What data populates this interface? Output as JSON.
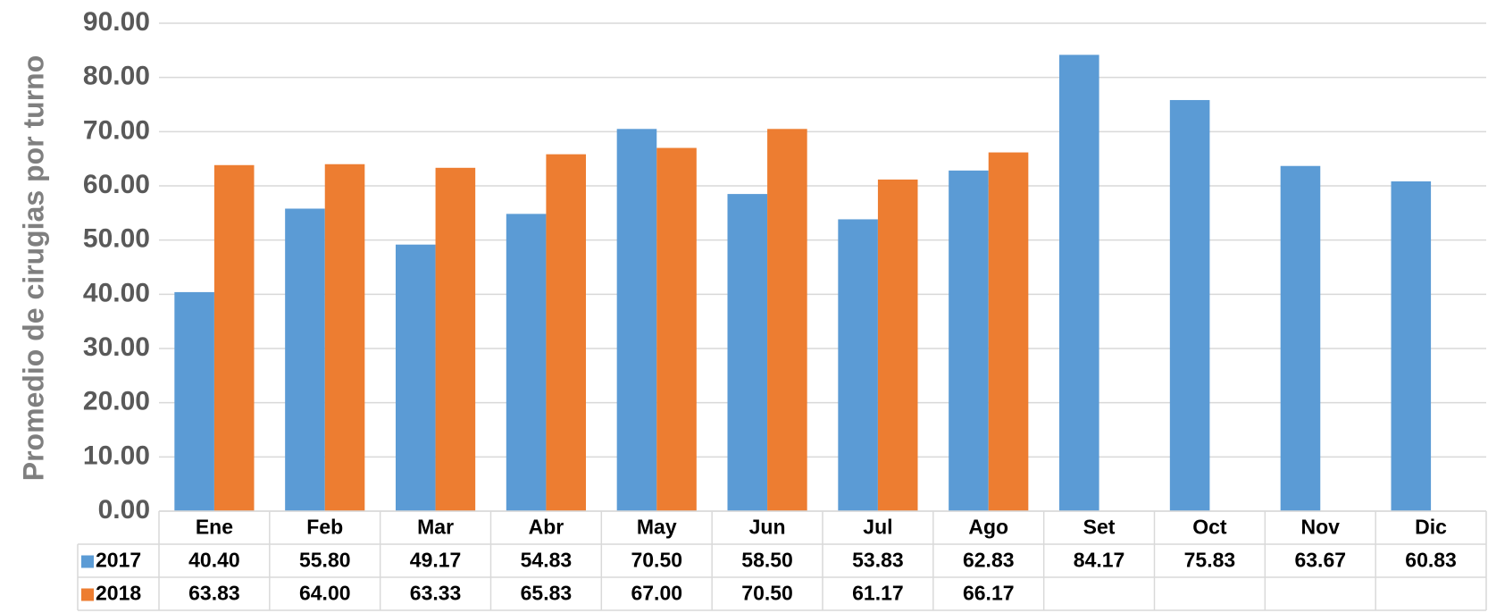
{
  "chart_data": {
    "type": "bar",
    "y_label": "Promedio de cirugias por  turno",
    "categories": [
      "Ene",
      "Feb",
      "Mar",
      "Abr",
      "May",
      "Jun",
      "Jul",
      "Ago",
      "Set",
      "Oct",
      "Nov",
      "Dic"
    ],
    "series": [
      {
        "name": "2017",
        "color": "#5b9bd5",
        "values": [
          40.4,
          55.8,
          49.17,
          54.83,
          70.5,
          58.5,
          53.83,
          62.83,
          84.17,
          75.83,
          63.67,
          60.83
        ],
        "value_labels": [
          "40.40",
          "55.80",
          "49.17",
          "54.83",
          "70.50",
          "58.50",
          "53.83",
          "62.83",
          "84.17",
          "75.83",
          "63.67",
          "60.83"
        ]
      },
      {
        "name": "2018",
        "color": "#ed7d31",
        "values": [
          63.83,
          64,
          63.33,
          65.83,
          67,
          70.5,
          61.17,
          66.17,
          null,
          null,
          null,
          null
        ],
        "value_labels": [
          "63.83",
          "64.00",
          "63.33",
          "65.83",
          "67.00",
          "70.50",
          "61.17",
          "66.17",
          null,
          null,
          null,
          null
        ]
      }
    ],
    "ylim": [
      0,
      90
    ],
    "yticks": [
      {
        "value": 0,
        "label": "0.00"
      },
      {
        "value": 10,
        "label": "10.00"
      },
      {
        "value": 20,
        "label": "20.00"
      },
      {
        "value": 30,
        "label": "30.00"
      },
      {
        "value": 40,
        "label": "40.00"
      },
      {
        "value": 50,
        "label": "50.00"
      },
      {
        "value": 60,
        "label": "60.00"
      },
      {
        "value": 70,
        "label": "70.00"
      },
      {
        "value": 80,
        "label": "80.00"
      },
      {
        "value": 90,
        "label": "90.00"
      }
    ],
    "grid": true,
    "data_table": true
  }
}
